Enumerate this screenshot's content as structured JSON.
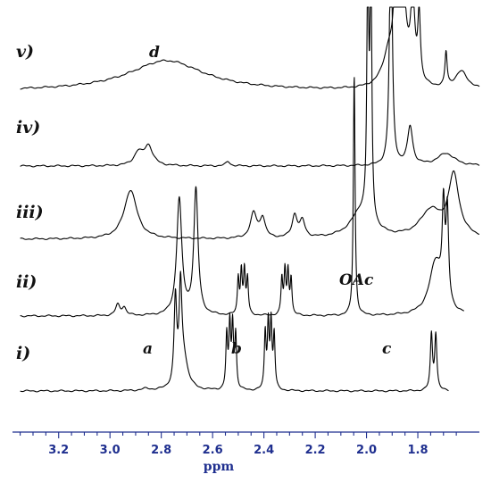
{
  "chart_data": {
    "type": "line",
    "title": "",
    "xlabel": "ppm",
    "ylabel": "",
    "x_reversed": true,
    "xlim": [
      3.38,
      1.56
    ],
    "x_ticks": [
      3.2,
      3.0,
      2.8,
      2.6,
      2.4,
      2.2,
      2.0,
      1.8
    ],
    "x_tick_labels": [
      "3.2",
      "3.0",
      "2.8",
      "2.6",
      "2.4",
      "2.2",
      "2.0",
      "1.8"
    ],
    "grid": false,
    "legend": "none",
    "color": "#1f2f8f",
    "trace_labels": [
      "i)",
      "ii)",
      "iii)",
      "iv)",
      "v)"
    ],
    "peak_annotations": [
      {
        "text": "a",
        "ppm": 2.8
      },
      {
        "text": "b",
        "ppm": 2.46
      },
      {
        "text": "c",
        "ppm": 1.8
      },
      {
        "text": "d",
        "ppm": 2.78
      },
      {
        "text": "OAc",
        "ppm": 1.95
      }
    ],
    "series": [
      {
        "label": "i)",
        "x_range": [
          3.35,
          1.68
        ],
        "peaks": [
          {
            "ppm": 2.745,
            "h": 95,
            "w": 0.006
          },
          {
            "ppm": 2.725,
            "h": 95,
            "w": 0.006
          },
          {
            "ppm": 2.715,
            "h": 38,
            "w": 0.02
          },
          {
            "ppm": 2.545,
            "h": 60,
            "w": 0.004
          },
          {
            "ppm": 2.533,
            "h": 70,
            "w": 0.004
          },
          {
            "ppm": 2.522,
            "h": 70,
            "w": 0.004
          },
          {
            "ppm": 2.51,
            "h": 60,
            "w": 0.004
          },
          {
            "ppm": 2.395,
            "h": 62,
            "w": 0.004
          },
          {
            "ppm": 2.383,
            "h": 72,
            "w": 0.004
          },
          {
            "ppm": 2.372,
            "h": 72,
            "w": 0.004
          },
          {
            "ppm": 2.36,
            "h": 60,
            "w": 0.004
          },
          {
            "ppm": 1.747,
            "h": 62,
            "w": 0.005
          },
          {
            "ppm": 1.73,
            "h": 62,
            "w": 0.005
          },
          {
            "ppm": 2.86,
            "h": 2,
            "w": 0.02
          }
        ]
      },
      {
        "label": "ii)",
        "x_range": [
          3.35,
          1.62
        ],
        "peaks": [
          {
            "ppm": 2.97,
            "h": 12,
            "w": 0.01
          },
          {
            "ppm": 2.945,
            "h": 9,
            "w": 0.01
          },
          {
            "ppm": 2.73,
            "h": 130,
            "w": 0.012
          },
          {
            "ppm": 2.665,
            "h": 140,
            "w": 0.01
          },
          {
            "ppm": 2.5,
            "h": 40,
            "w": 0.004
          },
          {
            "ppm": 2.488,
            "h": 48,
            "w": 0.004
          },
          {
            "ppm": 2.476,
            "h": 48,
            "w": 0.004
          },
          {
            "ppm": 2.464,
            "h": 40,
            "w": 0.004
          },
          {
            "ppm": 2.33,
            "h": 40,
            "w": 0.004
          },
          {
            "ppm": 2.318,
            "h": 48,
            "w": 0.004
          },
          {
            "ppm": 2.306,
            "h": 48,
            "w": 0.004
          },
          {
            "ppm": 2.294,
            "h": 40,
            "w": 0.004
          },
          {
            "ppm": 2.048,
            "h": 270,
            "w": 0.004
          },
          {
            "ppm": 1.73,
            "h": 60,
            "w": 0.03
          },
          {
            "ppm": 1.7,
            "h": 100,
            "w": 0.006
          },
          {
            "ppm": 1.685,
            "h": 100,
            "w": 0.006
          }
        ]
      },
      {
        "label": "iii)",
        "x_range": [
          3.35,
          1.56
        ],
        "peaks": [
          {
            "ppm": 2.92,
            "h": 55,
            "w": 0.03
          },
          {
            "ppm": 2.44,
            "h": 28,
            "w": 0.015
          },
          {
            "ppm": 2.405,
            "h": 22,
            "w": 0.012
          },
          {
            "ppm": 2.28,
            "h": 25,
            "w": 0.012
          },
          {
            "ppm": 2.25,
            "h": 18,
            "w": 0.012
          },
          {
            "ppm": 2.02,
            "h": 30,
            "w": 0.05
          },
          {
            "ppm": 1.995,
            "h": 300,
            "w": 0.004
          },
          {
            "ppm": 1.983,
            "h": 300,
            "w": 0.004
          },
          {
            "ppm": 1.75,
            "h": 30,
            "w": 0.05
          },
          {
            "ppm": 1.66,
            "h": 68,
            "w": 0.025
          }
        ]
      },
      {
        "label": "iv)",
        "x_range": [
          3.35,
          1.56
        ],
        "peaks": [
          {
            "ppm": 2.85,
            "h": 22,
            "w": 0.02
          },
          {
            "ppm": 2.89,
            "h": 14,
            "w": 0.02
          },
          {
            "ppm": 2.54,
            "h": 5,
            "w": 0.01
          },
          {
            "ppm": 1.905,
            "h": 300,
            "w": 0.006
          },
          {
            "ppm": 1.83,
            "h": 43,
            "w": 0.012
          },
          {
            "ppm": 1.69,
            "h": 14,
            "w": 0.04
          }
        ]
      },
      {
        "label": "v)",
        "x_range": [
          3.35,
          1.56
        ],
        "peaks": [
          {
            "ppm": 2.78,
            "h": 34,
            "w": 0.18
          },
          {
            "ppm": 1.91,
            "h": 40,
            "w": 0.03
          },
          {
            "ppm": 1.883,
            "h": 300,
            "w": 0.005
          },
          {
            "ppm": 1.86,
            "h": 120,
            "w": 0.015
          },
          {
            "ppm": 1.82,
            "h": 90,
            "w": 0.01
          },
          {
            "ppm": 1.795,
            "h": 75,
            "w": 0.006
          },
          {
            "ppm": 1.69,
            "h": 38,
            "w": 0.005
          },
          {
            "ppm": 1.63,
            "h": 20,
            "w": 0.03
          }
        ]
      }
    ]
  }
}
